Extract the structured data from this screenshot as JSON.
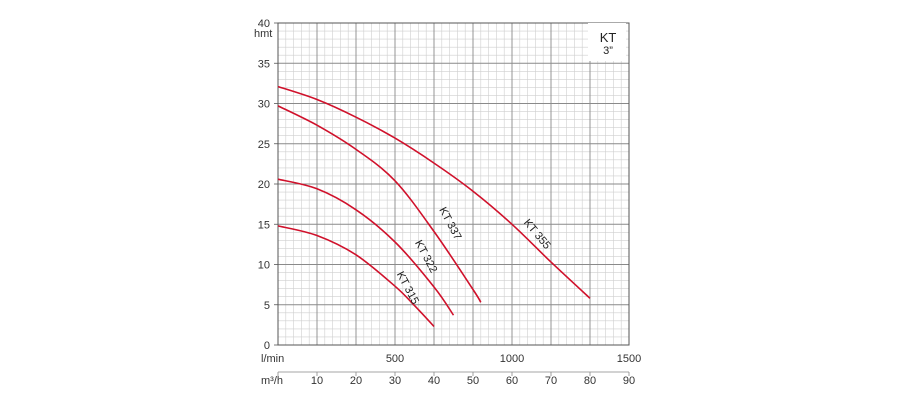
{
  "chart_data": {
    "type": "line",
    "y_axis": {
      "unit_label": "hmt",
      "range": [
        0,
        40
      ],
      "ticks": [
        "0",
        "5",
        "10",
        "15",
        "20",
        "25",
        "30",
        "35",
        "40"
      ]
    },
    "x_axis_lmin": {
      "unit_label": "l/min",
      "range": [
        0,
        1500
      ],
      "ticks": [
        {
          "value": 500,
          "label": "500"
        },
        {
          "value": 1000,
          "label": "1000"
        },
        {
          "value": 1500,
          "label": "1500"
        }
      ]
    },
    "x_axis_m3h": {
      "unit_label": "m³/h",
      "range": [
        0,
        90
      ],
      "ticks": [
        {
          "value": 10,
          "label": "10"
        },
        {
          "value": 20,
          "label": "20"
        },
        {
          "value": 30,
          "label": "30"
        },
        {
          "value": 40,
          "label": "40"
        },
        {
          "value": 50,
          "label": "50"
        },
        {
          "value": 60,
          "label": "60"
        },
        {
          "value": 70,
          "label": "70"
        },
        {
          "value": 80,
          "label": "80"
        },
        {
          "value": 90,
          "label": "90"
        }
      ]
    },
    "title_box": {
      "title": "KT",
      "subtitle": "3”"
    },
    "grid": true,
    "series": [
      {
        "name": "KT 315",
        "color": "#d0112b",
        "x_m3h": [
          0,
          10,
          20,
          30,
          35,
          40
        ],
        "y": [
          14.8,
          13.6,
          11.2,
          7.3,
          4.9,
          2.3
        ],
        "label_at": {
          "x_m3h": 32.5,
          "y": 6.9,
          "angle_deg": 62
        }
      },
      {
        "name": "KT 322",
        "color": "#d0112b",
        "x_m3h": [
          0,
          10,
          20,
          30,
          40,
          45
        ],
        "y": [
          20.6,
          19.4,
          16.8,
          12.8,
          7.2,
          3.7
        ],
        "label_at": {
          "x_m3h": 37.2,
          "y": 10.8,
          "angle_deg": 62
        }
      },
      {
        "name": "KT 337",
        "color": "#d0112b",
        "x_m3h": [
          0,
          10,
          20,
          30,
          40,
          50,
          52
        ],
        "y": [
          29.7,
          27.3,
          24.3,
          20.4,
          14.1,
          6.9,
          5.3
        ],
        "label_at": {
          "x_m3h": 43.4,
          "y": 14.9,
          "angle_deg": 62
        }
      },
      {
        "name": "KT 355",
        "color": "#d0112b",
        "x_m3h": [
          0,
          10,
          20,
          30,
          40,
          50,
          60,
          70,
          80
        ],
        "y": [
          32.1,
          30.5,
          28.3,
          25.7,
          22.6,
          19.1,
          15.0,
          10.3,
          5.8
        ],
        "label_at": {
          "x_m3h": 65.8,
          "y": 13.5,
          "angle_deg": 50
        }
      }
    ]
  }
}
